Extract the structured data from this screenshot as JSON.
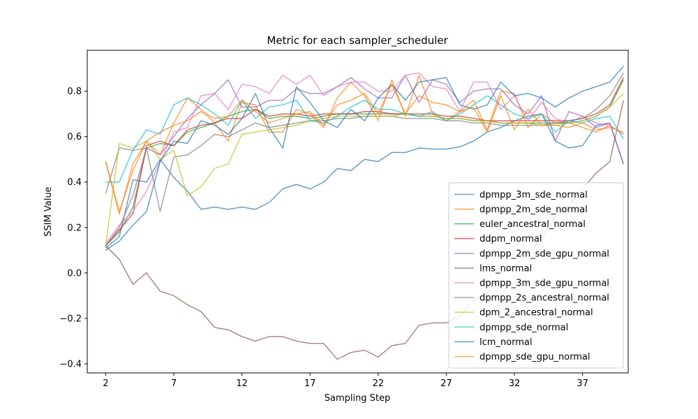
{
  "chart_data": {
    "type": "line",
    "title": "Metric for each sampler_scheduler",
    "xlabel": "Sampling Step",
    "ylabel": "SSIM Value",
    "xlim": [
      0.65,
      40.35
    ],
    "ylim": [
      -0.44,
      0.98
    ],
    "xticks": [
      2,
      7,
      12,
      17,
      22,
      27,
      32,
      37
    ],
    "yticks": [
      -0.4,
      -0.2,
      0.0,
      0.2,
      0.4,
      0.6,
      0.8
    ],
    "legend_position": "lower right",
    "x": [
      2,
      3,
      4,
      5,
      6,
      7,
      8,
      9,
      10,
      11,
      12,
      13,
      14,
      15,
      16,
      17,
      18,
      19,
      20,
      21,
      22,
      23,
      24,
      25,
      26,
      27,
      28,
      29,
      30,
      31,
      32,
      33,
      34,
      35,
      36,
      37,
      38,
      39,
      40
    ],
    "series": [
      {
        "name": "dpmpp_3m_sde_normal",
        "color": "#1f77b4",
        "values": [
          0.11,
          0.16,
          0.41,
          0.4,
          0.5,
          0.42,
          0.36,
          0.28,
          0.29,
          0.28,
          0.29,
          0.28,
          0.31,
          0.37,
          0.39,
          0.37,
          0.4,
          0.46,
          0.45,
          0.5,
          0.49,
          0.53,
          0.53,
          0.55,
          0.545,
          0.545,
          0.555,
          0.58,
          0.62,
          0.64,
          0.67,
          0.69,
          0.7,
          0.58,
          0.55,
          0.56,
          0.65,
          0.66,
          0.48
        ]
      },
      {
        "name": "dpmpp_2m_sde_normal",
        "color": "#ff7f0e",
        "values": [
          0.49,
          0.26,
          0.48,
          0.58,
          0.52,
          0.66,
          0.77,
          0.72,
          0.66,
          0.58,
          0.75,
          0.74,
          0.62,
          0.62,
          0.72,
          0.7,
          0.64,
          0.77,
          0.84,
          0.78,
          0.67,
          0.85,
          0.69,
          0.87,
          0.7,
          0.67,
          0.71,
          0.76,
          0.63,
          0.8,
          0.79,
          0.64,
          0.7,
          0.66,
          0.66,
          0.64,
          0.62,
          0.65,
          0.61
        ]
      },
      {
        "name": "euler_ancestral_normal",
        "color": "#2ca02c",
        "values": [
          0.12,
          0.18,
          0.29,
          0.55,
          0.57,
          0.56,
          0.62,
          0.64,
          0.66,
          0.69,
          0.71,
          0.72,
          0.68,
          0.69,
          0.69,
          0.68,
          0.69,
          0.7,
          0.7,
          0.7,
          0.7,
          0.7,
          0.7,
          0.69,
          0.69,
          0.68,
          0.68,
          0.67,
          0.67,
          0.66,
          0.66,
          0.66,
          0.66,
          0.66,
          0.66,
          0.67,
          0.69,
          0.73,
          0.85
        ]
      },
      {
        "name": "ddpm_normal",
        "color": "#d62728",
        "values": [
          0.12,
          0.19,
          0.26,
          0.56,
          0.58,
          0.56,
          0.63,
          0.65,
          0.66,
          0.68,
          0.68,
          0.72,
          0.69,
          0.7,
          0.7,
          0.69,
          0.7,
          0.7,
          0.7,
          0.71,
          0.71,
          0.7,
          0.7,
          0.7,
          0.7,
          0.69,
          0.69,
          0.68,
          0.67,
          0.67,
          0.67,
          0.67,
          0.67,
          0.67,
          0.67,
          0.68,
          0.7,
          0.74,
          0.86
        ]
      },
      {
        "name": "dpmpp_2m_sde_gpu_normal",
        "color": "#9467bd",
        "values": [
          0.12,
          0.2,
          0.34,
          0.55,
          0.52,
          0.6,
          0.68,
          0.74,
          0.79,
          0.85,
          0.73,
          0.73,
          0.76,
          0.76,
          0.81,
          0.79,
          0.79,
          0.82,
          0.86,
          0.81,
          0.77,
          0.77,
          0.87,
          0.75,
          0.85,
          0.83,
          0.75,
          0.8,
          0.81,
          0.81,
          0.74,
          0.7,
          0.78,
          0.58,
          0.71,
          0.69,
          0.64,
          0.66,
          0.48
        ]
      },
      {
        "name": "lms_normal",
        "color": "#8c564b",
        "values": [
          0.12,
          0.06,
          -0.05,
          0.0,
          -0.08,
          -0.1,
          -0.14,
          -0.17,
          -0.24,
          -0.25,
          -0.28,
          -0.3,
          -0.28,
          -0.28,
          -0.3,
          -0.31,
          -0.31,
          -0.38,
          -0.35,
          -0.34,
          -0.37,
          -0.32,
          -0.31,
          -0.23,
          -0.22,
          -0.22,
          -0.19,
          -0.12,
          -0.09,
          0.0,
          0.03,
          0.08,
          0.15,
          0.25,
          0.3,
          0.37,
          0.44,
          0.49,
          0.76
        ]
      },
      {
        "name": "dpmpp_3m_sde_gpu_normal",
        "color": "#e377c2",
        "values": [
          0.13,
          0.21,
          0.27,
          0.36,
          0.49,
          0.62,
          0.64,
          0.78,
          0.79,
          0.72,
          0.83,
          0.82,
          0.79,
          0.87,
          0.83,
          0.87,
          0.78,
          0.82,
          0.84,
          0.84,
          0.8,
          0.8,
          0.87,
          0.88,
          0.82,
          0.81,
          0.71,
          0.84,
          0.84,
          0.72,
          0.78,
          0.67,
          0.75,
          0.68,
          0.66,
          0.69,
          0.66,
          0.65,
          0.61
        ]
      },
      {
        "name": "dpmpp_2s_ancestral_normal",
        "color": "#7f7f7f",
        "values": [
          0.35,
          0.55,
          0.54,
          0.55,
          0.27,
          0.51,
          0.52,
          0.56,
          0.61,
          0.6,
          0.63,
          0.66,
          0.64,
          0.65,
          0.66,
          0.67,
          0.67,
          0.68,
          0.68,
          0.69,
          0.69,
          0.69,
          0.68,
          0.68,
          0.68,
          0.67,
          0.67,
          0.66,
          0.66,
          0.65,
          0.65,
          0.65,
          0.65,
          0.66,
          0.67,
          0.68,
          0.72,
          0.78,
          0.88
        ]
      },
      {
        "name": "dpm_2_ancestral_normal",
        "color": "#bcbd22",
        "values": [
          0.12,
          0.57,
          0.55,
          0.58,
          0.5,
          0.54,
          0.34,
          0.38,
          0.46,
          0.48,
          0.61,
          0.62,
          0.63,
          0.64,
          0.65,
          0.67,
          0.68,
          0.69,
          0.69,
          0.69,
          0.69,
          0.69,
          0.7,
          0.69,
          0.69,
          0.68,
          0.68,
          0.67,
          0.67,
          0.66,
          0.66,
          0.66,
          0.65,
          0.65,
          0.66,
          0.67,
          0.69,
          0.73,
          0.79
        ]
      },
      {
        "name": "dpmpp_sde_normal",
        "color": "#17becf",
        "values": [
          0.4,
          0.4,
          0.54,
          0.63,
          0.61,
          0.74,
          0.77,
          0.74,
          0.7,
          0.65,
          0.76,
          0.68,
          0.73,
          0.74,
          0.76,
          0.67,
          0.66,
          0.69,
          0.73,
          0.76,
          0.72,
          0.72,
          0.7,
          0.69,
          0.71,
          0.67,
          0.7,
          0.74,
          0.78,
          0.74,
          0.7,
          0.68,
          0.7,
          0.62,
          0.67,
          0.66,
          0.68,
          0.69,
          0.59
        ]
      },
      {
        "name": "lcm_normal",
        "color": "#1f77b4",
        "values": [
          0.1,
          0.14,
          0.21,
          0.27,
          0.49,
          0.58,
          0.57,
          0.67,
          0.65,
          0.61,
          0.68,
          0.79,
          0.64,
          0.55,
          0.82,
          0.75,
          0.67,
          0.64,
          0.72,
          0.67,
          0.77,
          0.83,
          0.76,
          0.84,
          0.85,
          0.86,
          0.74,
          0.72,
          0.74,
          0.84,
          0.78,
          0.79,
          0.77,
          0.73,
          0.77,
          0.8,
          0.82,
          0.84,
          0.91
        ]
      },
      {
        "name": "dpmpp_sde_gpu_normal",
        "color": "#ff7f0e",
        "values": [
          0.49,
          0.27,
          0.45,
          0.58,
          0.62,
          0.65,
          0.67,
          0.71,
          0.68,
          0.69,
          0.76,
          0.71,
          0.66,
          0.68,
          0.7,
          0.71,
          0.65,
          0.74,
          0.76,
          0.79,
          0.7,
          0.83,
          0.7,
          0.78,
          0.75,
          0.74,
          0.71,
          0.73,
          0.62,
          0.78,
          0.63,
          0.72,
          0.65,
          0.65,
          0.64,
          0.66,
          0.63,
          0.64,
          0.62
        ]
      }
    ]
  }
}
